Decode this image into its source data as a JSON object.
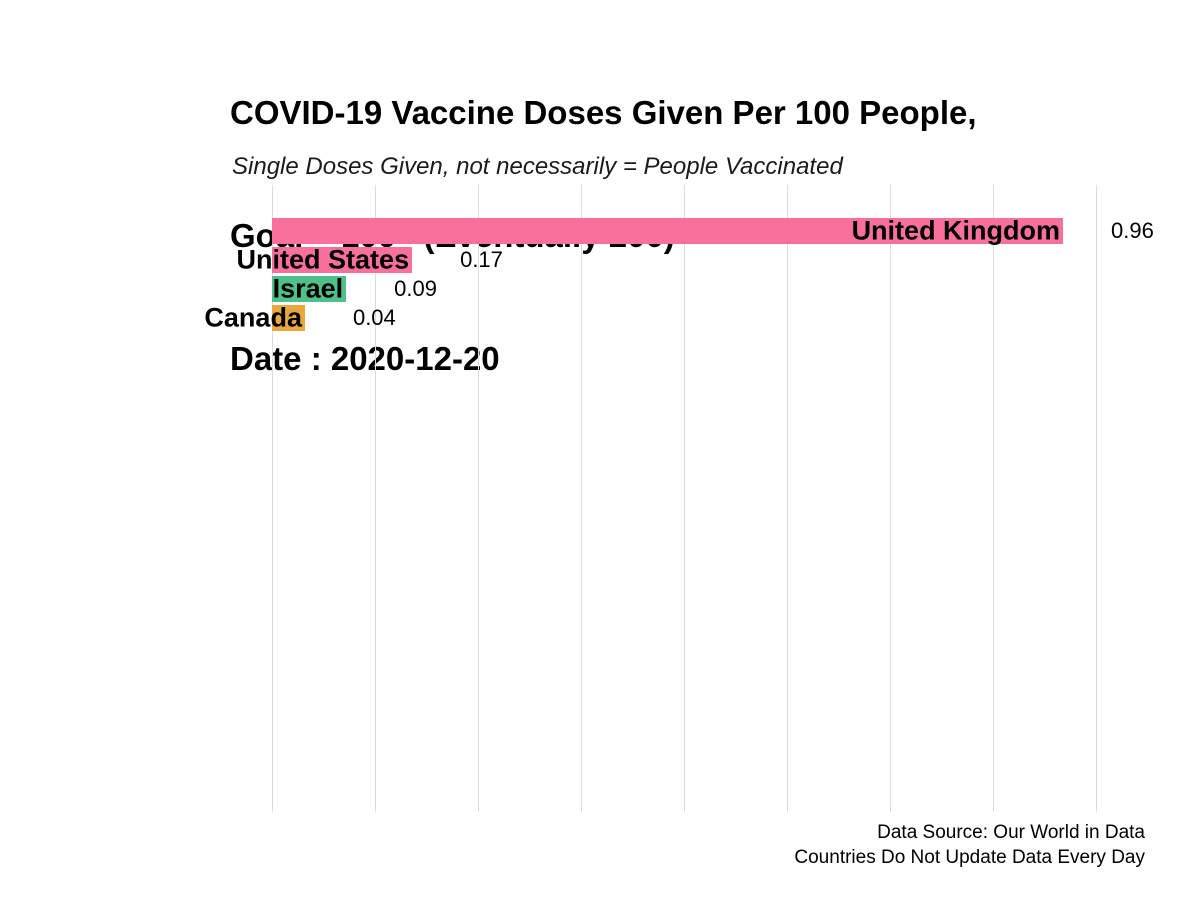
{
  "chart_data": {
    "type": "bar",
    "orientation": "horizontal",
    "title": "COVID-19 Vaccine Doses Given Per 100 People, Goal = 100 (Eventually 200) Date : 2020-12-20",
    "title_lines": [
      "COVID-19 Vaccine Doses Given Per 100 People,",
      "Goal = 100   (Eventually 200)",
      "Date : 2020-12-20"
    ],
    "subtitle": "Single Doses Given, not necessarily = People Vaccinated",
    "categories": [
      "United Kingdom",
      "United States",
      "Israel",
      "Canada"
    ],
    "values": [
      0.96,
      0.17,
      0.09,
      0.04
    ],
    "value_labels": [
      "0.96",
      "0.17",
      "0.09",
      "0.04"
    ],
    "bar_colors": [
      "#f8719d",
      "#f8719d",
      "#50c08a",
      "#e8a73f"
    ],
    "xlabel": "",
    "ylabel": "",
    "xlim": [
      0,
      1.0
    ],
    "gridline_step": 0.125,
    "grid": true,
    "legend": false,
    "gridline_color": "#dcdcdc",
    "annotations": [
      "Data Source: Our World in Data",
      "Countries Do Not Update Data Every Day"
    ]
  }
}
